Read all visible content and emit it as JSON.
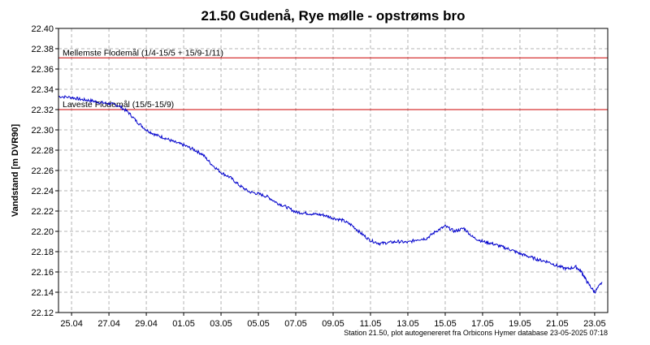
{
  "chart_data": {
    "type": "line",
    "title": "21.50  Gudenå, Rye mølle - opstrøms bro",
    "ylabel": "Vandstand [m DVR90]",
    "xlabel": "",
    "footer": "Station 21.50, plot autogenereret fra Orbicons Hymer database 23-05-2025 07:18",
    "ylim": [
      22.12,
      22.4
    ],
    "xlim": [
      -0.7,
      28.7
    ],
    "yticks": [
      22.12,
      22.14,
      22.16,
      22.18,
      22.2,
      22.22,
      22.24,
      22.26,
      22.28,
      22.3,
      22.32,
      22.34,
      22.36,
      22.38,
      22.4
    ],
    "ytick_labels": [
      "22.12",
      "22.14",
      "22.16",
      "22.18",
      "22.20",
      "22.22",
      "22.24",
      "22.26",
      "22.28",
      "22.30",
      "22.32",
      "22.34",
      "22.36",
      "22.38",
      "22.40"
    ],
    "xtick_labels": [
      "25.04",
      "27.04",
      "29.04",
      "01.05",
      "03.05",
      "05.05",
      "07.05",
      "09.05",
      "11.05",
      "13.05",
      "15.05",
      "17.05",
      "19.05",
      "21.05",
      "23.05"
    ],
    "xticks": [
      0,
      2,
      4,
      6,
      8,
      10,
      12,
      14,
      16,
      18,
      20,
      22,
      24,
      26,
      28
    ],
    "grid": true,
    "reference_lines": [
      {
        "label": "Mellemste Flodemål (1/4-15/5 + 15/9-1/11)",
        "value": 22.371,
        "color": "#cc0000"
      },
      {
        "label": "Laveste Flodemål (15/5-15/9)",
        "value": 22.32,
        "color": "#cc0000"
      }
    ],
    "series": [
      {
        "color": "#0000cc",
        "x": [
          -0.7,
          0,
          0.5,
          1,
          1.5,
          2,
          2.5,
          3,
          3.5,
          4,
          4.5,
          5,
          5.5,
          6,
          6.5,
          7,
          7.5,
          8,
          8.5,
          9,
          9.5,
          10,
          10.5,
          11,
          11.5,
          12,
          12.5,
          13,
          13.5,
          14,
          14.5,
          15,
          15.5,
          16,
          16.5,
          17,
          17.5,
          18,
          18.5,
          19,
          19.5,
          20,
          20.5,
          21,
          21.5,
          22,
          22.5,
          23,
          23.5,
          24,
          24.5,
          25,
          25.5,
          26,
          26.5,
          27,
          27.3,
          27.6,
          28,
          28.4
        ],
        "y": [
          22.333,
          22.332,
          22.33,
          22.329,
          22.327,
          22.326,
          22.324,
          22.318,
          22.308,
          22.3,
          22.295,
          22.292,
          22.288,
          22.285,
          22.281,
          22.276,
          22.266,
          22.258,
          22.253,
          22.245,
          22.239,
          22.237,
          22.234,
          22.228,
          22.224,
          22.219,
          22.218,
          22.217,
          22.216,
          22.213,
          22.211,
          22.206,
          22.198,
          22.191,
          22.188,
          22.189,
          22.19,
          22.189,
          22.192,
          22.193,
          22.2,
          22.205,
          22.2,
          22.203,
          22.194,
          22.19,
          22.188,
          22.185,
          22.182,
          22.178,
          22.175,
          22.172,
          22.17,
          22.166,
          22.163,
          22.165,
          22.16,
          22.15,
          22.14,
          22.15
        ]
      }
    ]
  }
}
